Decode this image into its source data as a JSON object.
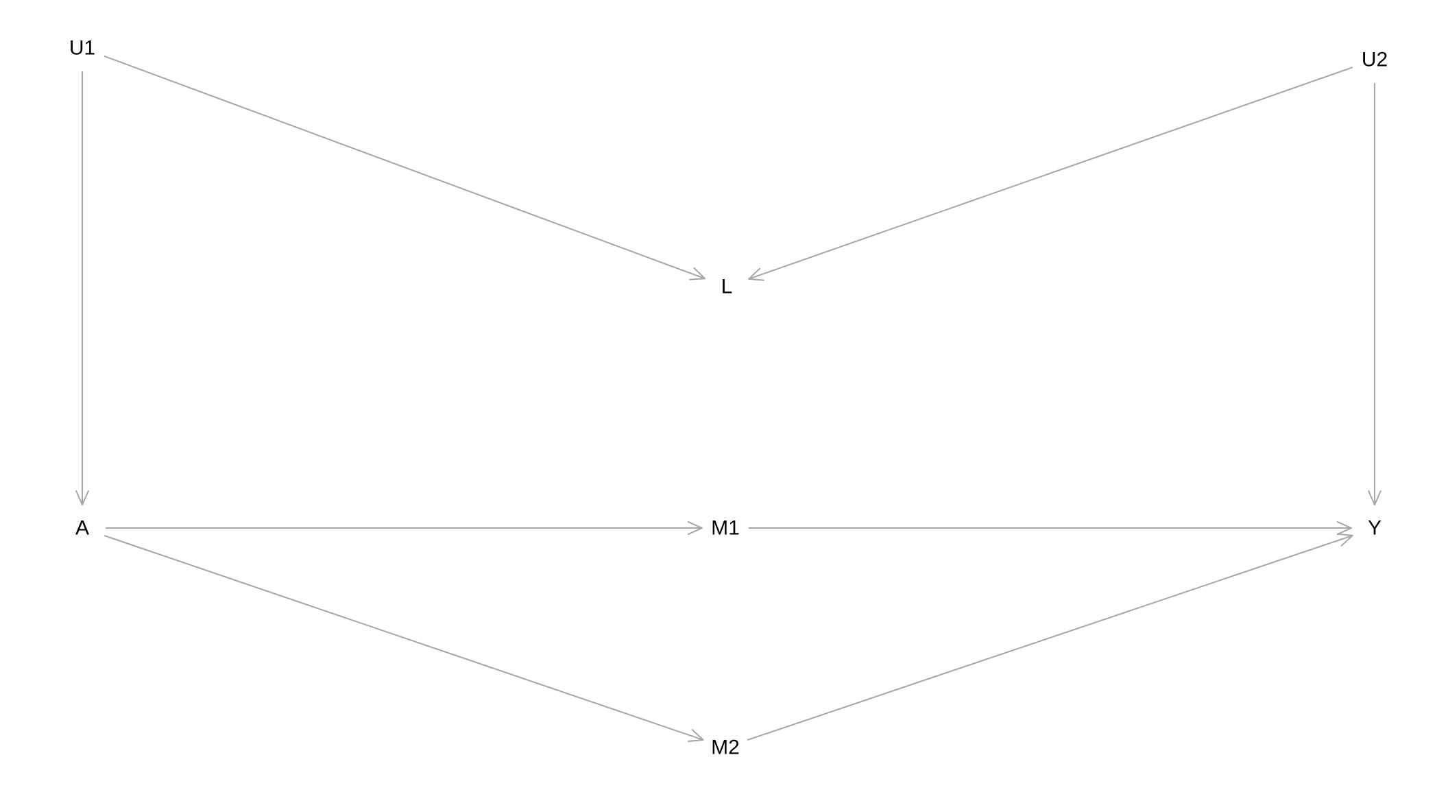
{
  "diagram": {
    "type": "directed-acyclic-graph",
    "edge_color": "#a6a6a6",
    "label_color": "#000000",
    "nodes": [
      {
        "id": "U1",
        "label": "U1"
      },
      {
        "id": "U2",
        "label": "U2"
      },
      {
        "id": "L",
        "label": "L"
      },
      {
        "id": "A",
        "label": "A"
      },
      {
        "id": "M1",
        "label": "M1"
      },
      {
        "id": "Y",
        "label": "Y"
      },
      {
        "id": "M2",
        "label": "M2"
      }
    ],
    "edges": [
      {
        "from": "U1",
        "to": "L"
      },
      {
        "from": "U2",
        "to": "L"
      },
      {
        "from": "U1",
        "to": "A"
      },
      {
        "from": "U2",
        "to": "Y"
      },
      {
        "from": "A",
        "to": "M1"
      },
      {
        "from": "M1",
        "to": "Y"
      },
      {
        "from": "A",
        "to": "M2"
      },
      {
        "from": "M2",
        "to": "Y"
      }
    ]
  }
}
